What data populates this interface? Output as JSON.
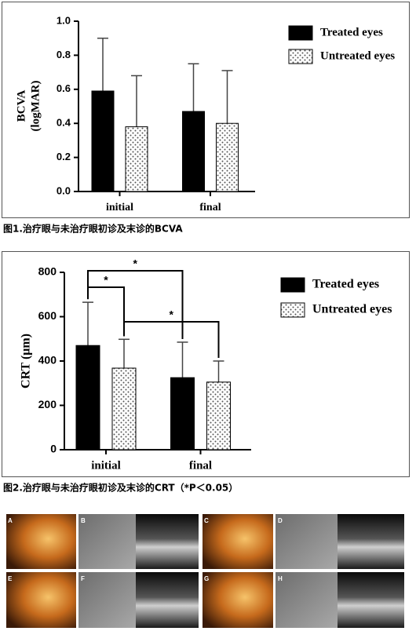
{
  "chart_data": [
    {
      "type": "bar",
      "ylabel": [
        "BCVA",
        "(logMAR)"
      ],
      "categories": [
        "initial",
        "final"
      ],
      "series": [
        {
          "name": "Treated eyes",
          "color": "#000000",
          "values": [
            0.59,
            0.47
          ],
          "errors": [
            0.31,
            0.28
          ]
        },
        {
          "name": "Untreated eyes",
          "color": "#ffffff",
          "pattern": "dots",
          "values": [
            0.38,
            0.4
          ],
          "errors": [
            0.3,
            0.31
          ]
        }
      ],
      "ylim": [
        0,
        1
      ],
      "yticks": [
        {
          "value": 0,
          "label": "0.0"
        },
        0.2,
        0.4,
        0.6,
        0.8,
        {
          "value": 1,
          "label": "1.0"
        }
      ],
      "caption": "图1.治疗眼与未治疗眼初诊及末诊的BCVA"
    },
    {
      "type": "bar",
      "ylabel": [
        "CRT (μm)"
      ],
      "categories": [
        "initial",
        "final"
      ],
      "series": [
        {
          "name": "Treated eyes",
          "color": "#000000",
          "values": [
            470,
            325
          ],
          "errors": [
            195,
            160
          ]
        },
        {
          "name": "Untreated eyes",
          "color": "#ffffff",
          "pattern": "dots",
          "values": [
            368,
            305
          ],
          "errors": [
            130,
            95
          ]
        }
      ],
      "ylim": [
        0,
        800
      ],
      "yticks": [
        0,
        200,
        400,
        600,
        800
      ],
      "annotations": [
        "*",
        "*",
        "*"
      ],
      "caption": "图2.治疗眼与未治疗眼初诊及末诊的CRT（*P＜0.05）"
    }
  ],
  "figure3": {
    "panels": [
      "A",
      "B",
      "C",
      "D",
      "E",
      "F",
      "G",
      "H"
    ]
  }
}
